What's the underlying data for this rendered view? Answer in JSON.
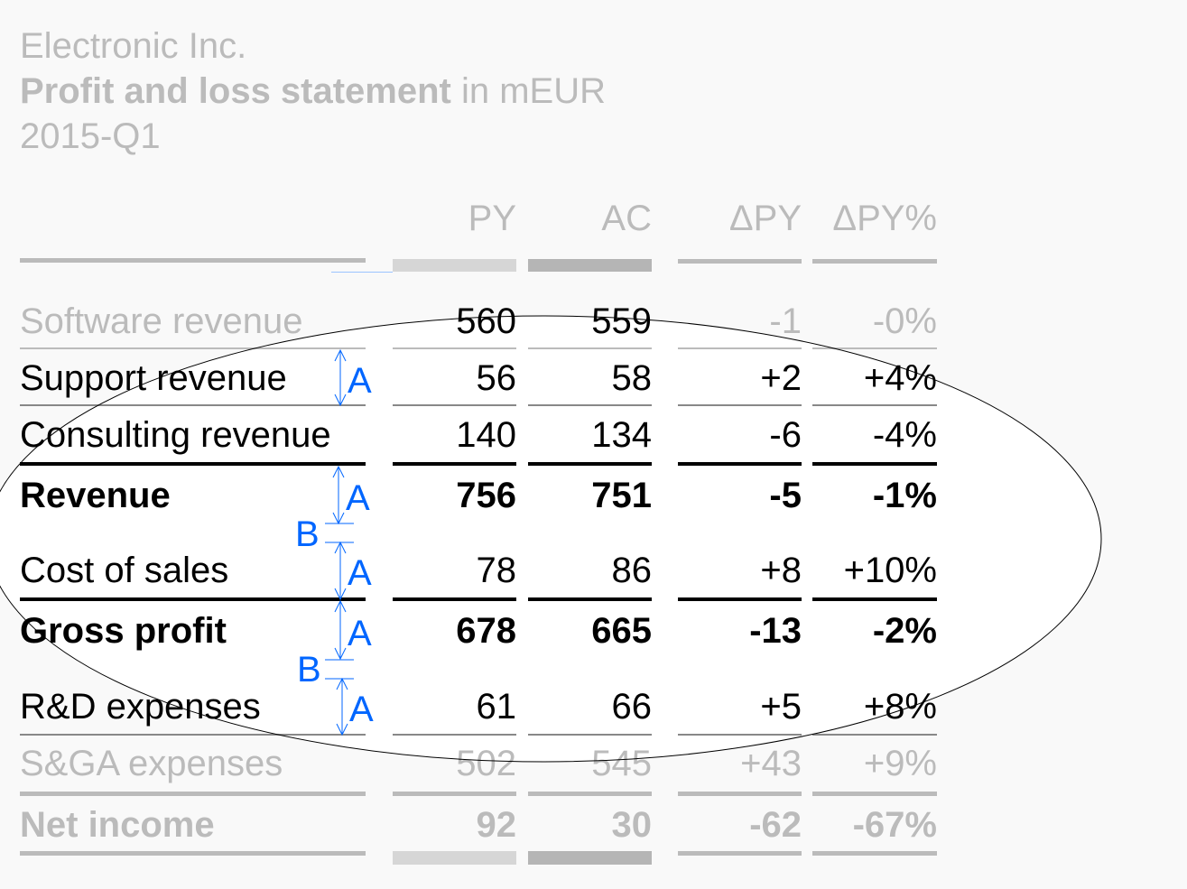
{
  "header": {
    "company": "Electronic Inc.",
    "statement_bold": "Profit and loss statement",
    "statement_unit": " in mEUR",
    "period": "2015-Q1"
  },
  "columns": [
    "PY",
    "AC",
    "ΔPY",
    "ΔPY%"
  ],
  "rows": [
    {
      "label": "Software revenue",
      "py": "560",
      "ac": "559",
      "dpy": "-1",
      "dpyp": "-0%"
    },
    {
      "label": "Support revenue",
      "py": "56",
      "ac": "58",
      "dpy": "+2",
      "dpyp": "+4%"
    },
    {
      "label": "Consulting revenue",
      "py": "140",
      "ac": "134",
      "dpy": "-6",
      "dpyp": "-4%"
    },
    {
      "label": "Revenue",
      "py": "756",
      "ac": "751",
      "dpy": "-5",
      "dpyp": "-1%"
    },
    {
      "label": "Cost of sales",
      "py": "78",
      "ac": "86",
      "dpy": "+8",
      "dpyp": "+10%"
    },
    {
      "label": "Gross profit",
      "py": "678",
      "ac": "665",
      "dpy": "-13",
      "dpyp": "-2%"
    },
    {
      "label": "R&D expenses",
      "py": "61",
      "ac": "66",
      "dpy": "+5",
      "dpyp": "+8%"
    },
    {
      "label": "S&GA expenses",
      "py": "502",
      "ac": "545",
      "dpy": "+43",
      "dpyp": "+9%"
    },
    {
      "label": "Net income",
      "py": "92",
      "ac": "30",
      "dpy": "-62",
      "dpyp": "-67%"
    }
  ],
  "annotations": {
    "a": "A",
    "b": "B",
    "color": "#0066ff"
  },
  "colors": {
    "muted_text": "#bbbbbb",
    "highlight_bg": "#ffffff",
    "page_bg": "#f9f9f9"
  }
}
